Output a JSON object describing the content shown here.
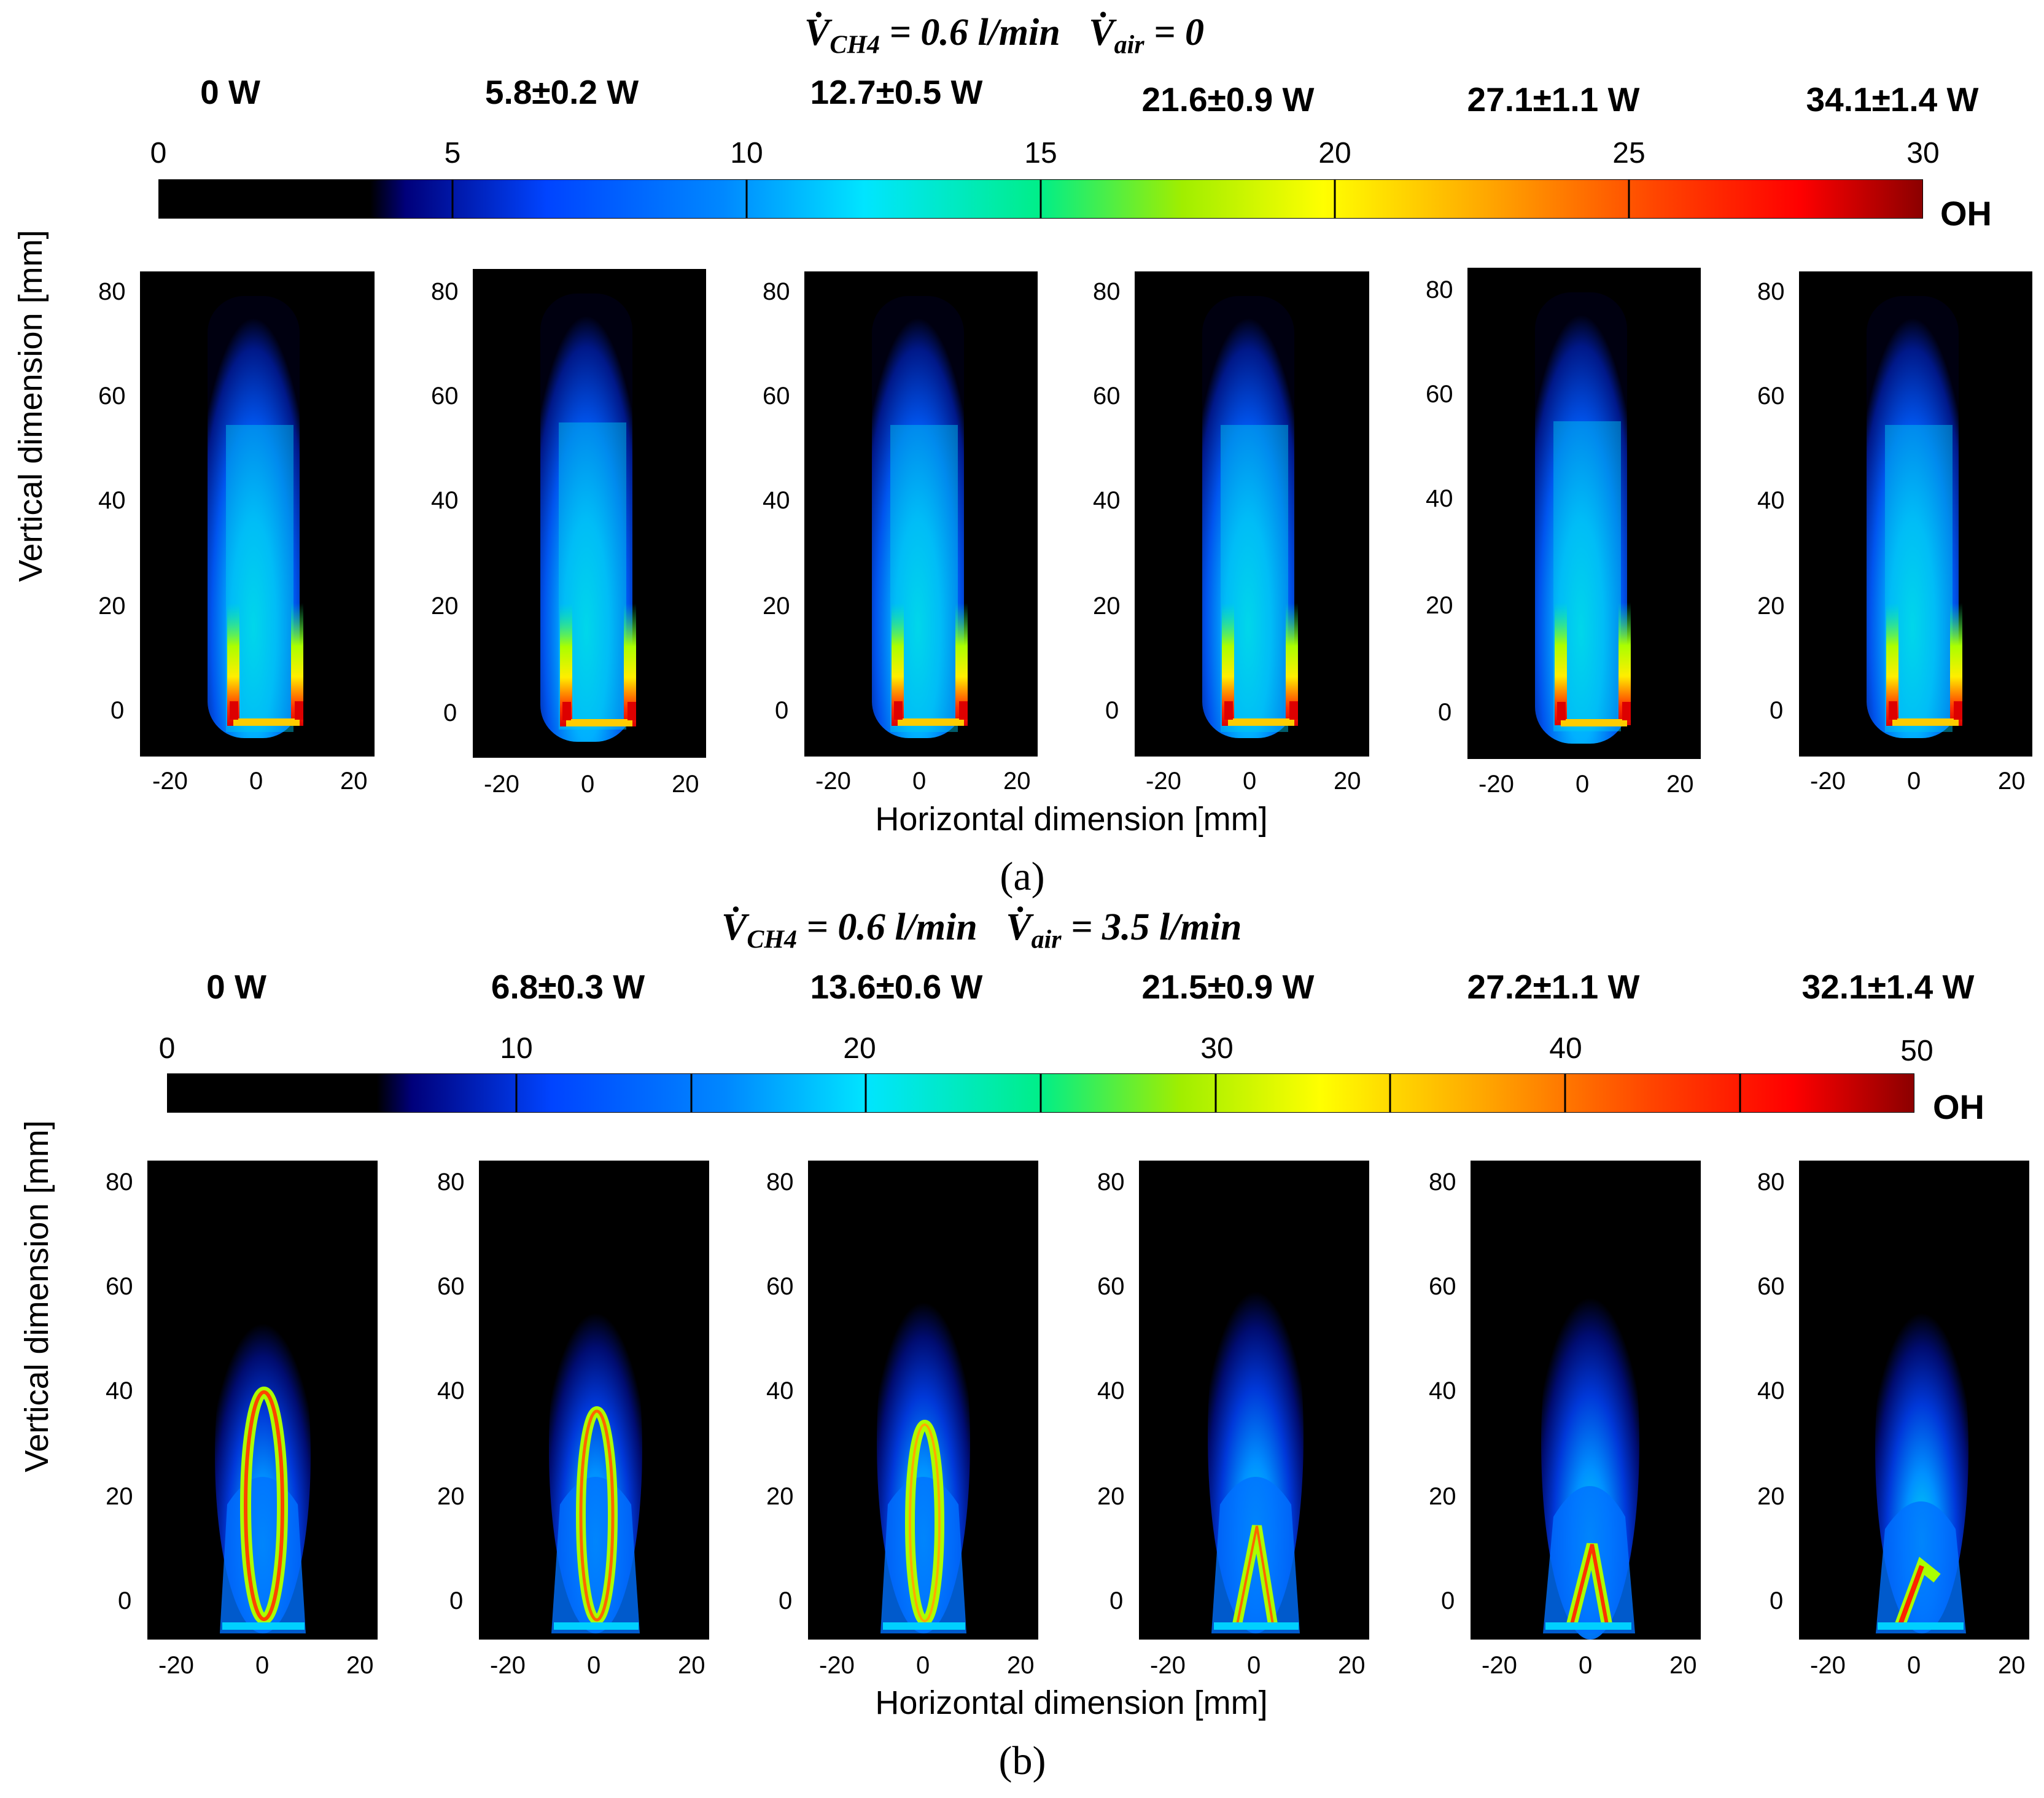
{
  "panel_a": {
    "label": "(a)",
    "condition": {
      "v_ch4_symbol": "V̇",
      "v_ch4_sub": "CH4",
      "v_ch4_value": " = 0.6 l/min",
      "v_air_symbol": "V̇",
      "v_air_sub": "air",
      "v_air_value": " = 0"
    },
    "powers": [
      "0 W",
      "5.8±0.2 W",
      "12.7±0.5  W",
      "21.6±0.9 W",
      "27.1±1.1 W",
      "34.1±1.4 W"
    ],
    "colorbar": {
      "ticks": [
        "0",
        "5",
        "10",
        "15",
        "20",
        "25",
        "30"
      ],
      "min": 0,
      "max": 30,
      "quantity": "OH"
    },
    "flame_type": "non-premixed"
  },
  "panel_b": {
    "label": "(b)",
    "condition": {
      "v_ch4_symbol": "V̇",
      "v_ch4_sub": "CH4",
      "v_ch4_value": " = 0.6 l/min",
      "v_air_symbol": "V̇",
      "v_air_sub": "air",
      "v_air_value": " = 3.5  l/min"
    },
    "powers": [
      "0 W",
      "6.8±0.3 W",
      "13.6±0.6 W",
      "21.5±0.9 W",
      "27.2±1.1 W",
      "32.1±1.4 W"
    ],
    "colorbar": {
      "ticks": [
        "0",
        "10",
        "20",
        "30",
        "40",
        "50"
      ],
      "min": 0,
      "max": 50,
      "quantity": "OH"
    },
    "flame_type": "partially-premixed"
  },
  "axes": {
    "xlabel": "Horizontal dimension [mm]",
    "ylabel": "Vertical dimension [mm]",
    "x_ticks": [
      "-20",
      "0",
      "20"
    ],
    "y_ticks": [
      "0",
      "20",
      "40",
      "60",
      "80"
    ]
  },
  "colors": {
    "colormap": [
      "#000000",
      "#000000",
      "#00007a",
      "#0044ff",
      "#0088ff",
      "#00e5ff",
      "#00ee88",
      "#a0ee00",
      "#ffff00",
      "#ffaa00",
      "#ff4400",
      "#ff0000",
      "#8b0000"
    ]
  }
}
